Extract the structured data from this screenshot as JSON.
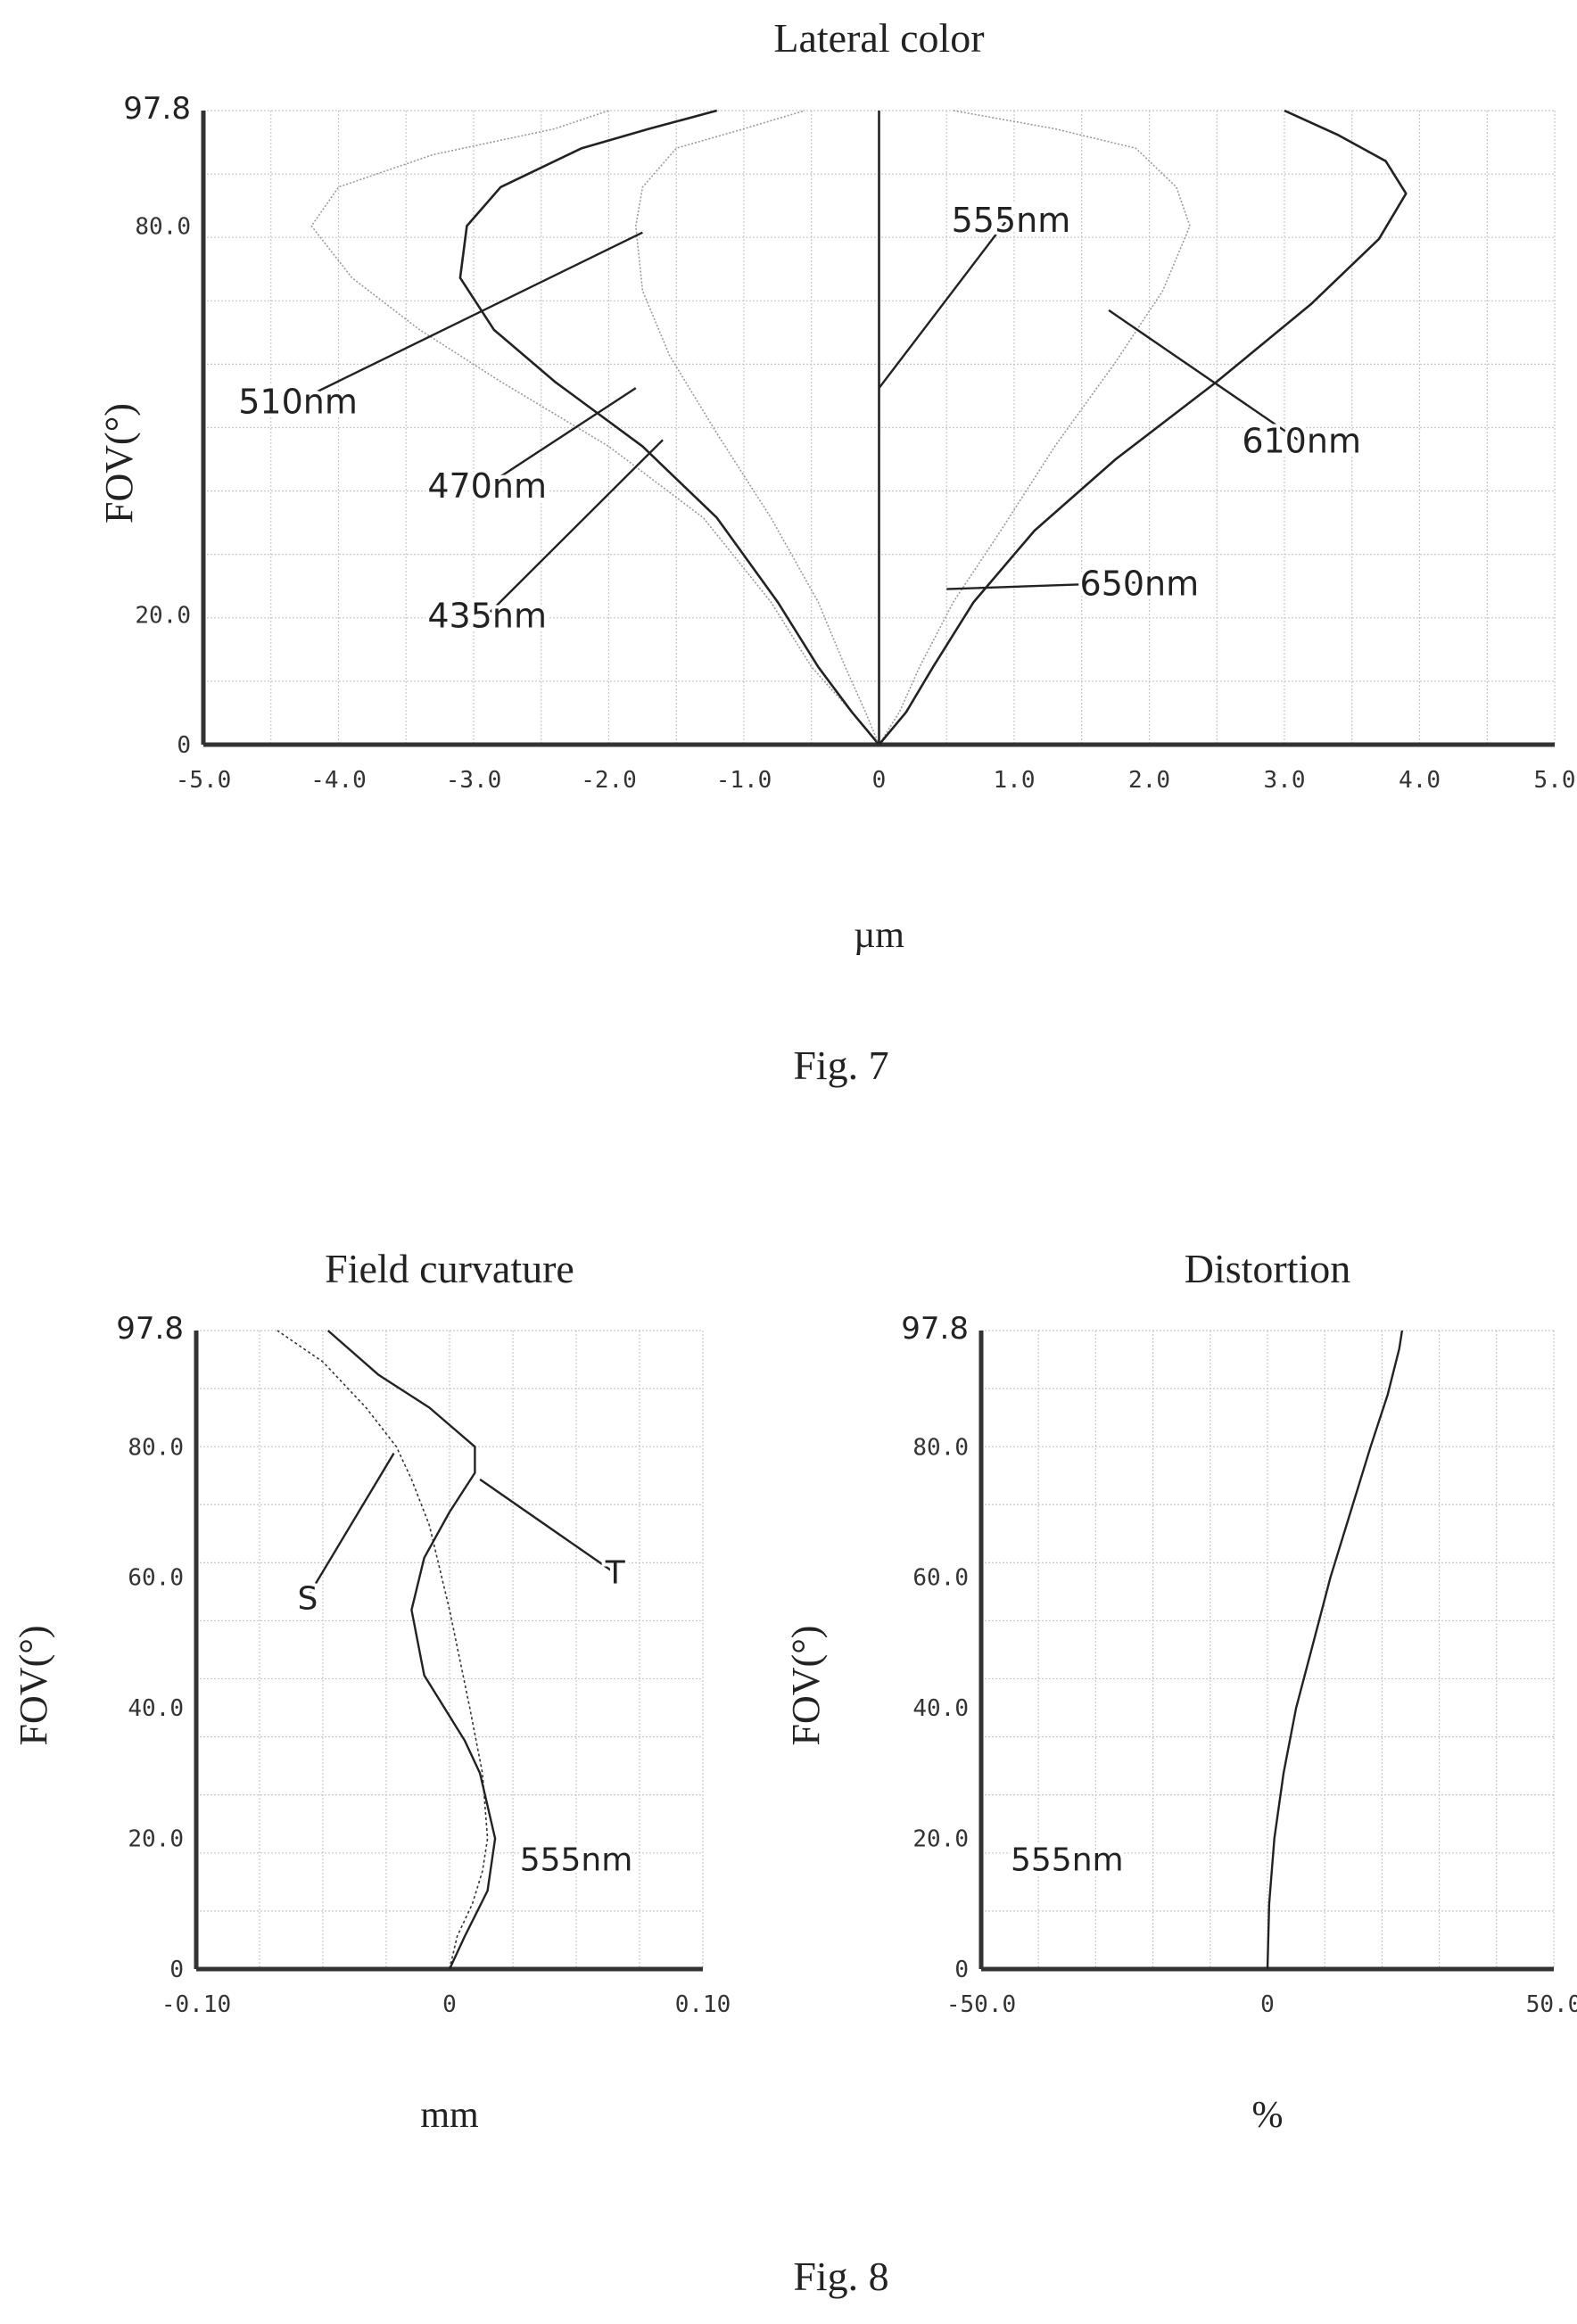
{
  "figures": [
    {
      "id": "fig7",
      "caption": "Fig. 7"
    },
    {
      "id": "fig8",
      "caption": "Fig. 8"
    }
  ],
  "chart_data": [
    {
      "id": "lateral_color",
      "type": "line",
      "title": "Lateral color",
      "xlabel": "µm",
      "ylabel": "FOV(°)",
      "xlim": [
        -5.0,
        5.0
      ],
      "ylim": [
        0,
        97.8
      ],
      "x_ticks": [
        -5.0,
        -4.0,
        -3.0,
        -2.0,
        -1.0,
        0,
        1.0,
        2.0,
        3.0,
        4.0,
        5.0
      ],
      "x_tick_labels": [
        "-5.0",
        "-4.0",
        "-3.0",
        "-2.0",
        "-1.0",
        "0",
        "1.0",
        "2.0",
        "3.0",
        "4.0",
        "5.0"
      ],
      "y_ticks": [
        0,
        20.0,
        80.0,
        97.8
      ],
      "y_tick_labels": [
        "0",
        "20.0",
        "80.0",
        "97.8"
      ],
      "grid": true,
      "series": [
        {
          "name": "435nm",
          "color": "#9a9a9a",
          "dash": "2,2",
          "width": 1.6,
          "points": [
            [
              0,
              0
            ],
            [
              -0.2,
              5
            ],
            [
              -0.5,
              12
            ],
            [
              -0.8,
              22
            ],
            [
              -1.3,
              35
            ],
            [
              -2.0,
              46
            ],
            [
              -2.8,
              56
            ],
            [
              -3.4,
              64
            ],
            [
              -3.9,
              72
            ],
            [
              -4.2,
              80
            ],
            [
              -4.0,
              86
            ],
            [
              -3.3,
              91
            ],
            [
              -2.4,
              95
            ],
            [
              -2.0,
              97.8
            ]
          ]
        },
        {
          "name": "470nm",
          "color": "#222222",
          "dash": "",
          "width": 2.6,
          "points": [
            [
              0,
              0
            ],
            [
              -0.2,
              5
            ],
            [
              -0.45,
              12
            ],
            [
              -0.75,
              22
            ],
            [
              -1.2,
              35
            ],
            [
              -1.75,
              46
            ],
            [
              -2.4,
              56
            ],
            [
              -2.85,
              64
            ],
            [
              -3.1,
              72
            ],
            [
              -3.05,
              80
            ],
            [
              -2.8,
              86
            ],
            [
              -2.2,
              92
            ],
            [
              -1.7,
              95
            ],
            [
              -1.2,
              97.8
            ]
          ]
        },
        {
          "name": "510nm",
          "color": "#9a9a9a",
          "dash": "2,2",
          "width": 1.6,
          "points": [
            [
              0,
              0
            ],
            [
              -0.1,
              5
            ],
            [
              -0.25,
              12
            ],
            [
              -0.45,
              22
            ],
            [
              -0.8,
              35
            ],
            [
              -1.2,
              48
            ],
            [
              -1.55,
              60
            ],
            [
              -1.75,
              70
            ],
            [
              -1.8,
              80
            ],
            [
              -1.75,
              86
            ],
            [
              -1.5,
              92
            ],
            [
              -1.0,
              95
            ],
            [
              -0.55,
              97.8
            ]
          ]
        },
        {
          "name": "555nm",
          "color": "#222222",
          "dash": "",
          "width": 2.6,
          "points": [
            [
              0,
              0
            ],
            [
              0,
              97.8
            ]
          ]
        },
        {
          "name": "610nm",
          "color": "#9a9a9a",
          "dash": "2,2",
          "width": 1.6,
          "points": [
            [
              0,
              0
            ],
            [
              0.15,
              5
            ],
            [
              0.3,
              12
            ],
            [
              0.55,
              22
            ],
            [
              0.9,
              33
            ],
            [
              1.3,
              46
            ],
            [
              1.75,
              59
            ],
            [
              2.1,
              70
            ],
            [
              2.3,
              80
            ],
            [
              2.2,
              86
            ],
            [
              1.9,
              92
            ],
            [
              1.3,
              95
            ],
            [
              0.55,
              97.8
            ]
          ]
        },
        {
          "name": "650nm",
          "color": "#222222",
          "dash": "",
          "width": 2.6,
          "points": [
            [
              0,
              0
            ],
            [
              0.2,
              5
            ],
            [
              0.4,
              12
            ],
            [
              0.7,
              22
            ],
            [
              1.15,
              33
            ],
            [
              1.75,
              44
            ],
            [
              2.5,
              56
            ],
            [
              3.2,
              68
            ],
            [
              3.7,
              78
            ],
            [
              3.9,
              85
            ],
            [
              3.75,
              90
            ],
            [
              3.4,
              94
            ],
            [
              3.0,
              97.8
            ]
          ]
        }
      ],
      "annotations": [
        {
          "text": "510nm",
          "target": [
            -1.75,
            79
          ],
          "label_at": [
            -4.3,
            53
          ]
        },
        {
          "text": "470nm",
          "target": [
            -1.8,
            55
          ],
          "label_at": [
            -2.9,
            40
          ]
        },
        {
          "text": "435nm",
          "target": [
            -1.6,
            47
          ],
          "label_at": [
            -2.9,
            20
          ]
        },
        {
          "text": "555nm",
          "target": [
            0,
            55
          ],
          "label_at": [
            0.95,
            81
          ]
        },
        {
          "text": "610nm",
          "target": [
            1.7,
            67
          ],
          "label_at": [
            3.1,
            47
          ]
        },
        {
          "text": "650nm",
          "target": [
            0.5,
            24
          ],
          "label_at": [
            1.9,
            25
          ]
        }
      ]
    },
    {
      "id": "field_curvature",
      "type": "line",
      "title": "Field curvature",
      "xlabel": "mm",
      "ylabel": "FOV(°)",
      "xlim": [
        -0.1,
        0.1
      ],
      "ylim": [
        0,
        97.8
      ],
      "x_ticks": [
        -0.1,
        0,
        0.1
      ],
      "x_tick_labels": [
        "-0.10",
        "0",
        "0.10"
      ],
      "y_ticks": [
        0,
        20.0,
        40.0,
        60.0,
        80.0,
        97.8
      ],
      "y_tick_labels": [
        "0",
        "20.0",
        "40.0",
        "60.0",
        "80.0",
        "97.8"
      ],
      "grid": true,
      "series": [
        {
          "name": "S",
          "color": "#333333",
          "dash": "3,3",
          "width": 1.6,
          "points": [
            [
              0,
              0
            ],
            [
              0.003,
              5
            ],
            [
              0.009,
              10
            ],
            [
              0.013,
              15
            ],
            [
              0.015,
              20
            ],
            [
              0.013,
              30
            ],
            [
              0.008,
              40
            ],
            [
              0.0,
              55
            ],
            [
              -0.008,
              68
            ],
            [
              -0.015,
              75
            ],
            [
              -0.021,
              80
            ],
            [
              -0.033,
              86
            ],
            [
              -0.05,
              93
            ],
            [
              -0.068,
              97.8
            ]
          ]
        },
        {
          "name": "T",
          "color": "#222222",
          "dash": "",
          "width": 2.4,
          "points": [
            [
              0,
              0
            ],
            [
              0.006,
              5
            ],
            [
              0.015,
              12
            ],
            [
              0.018,
              20
            ],
            [
              0.012,
              30
            ],
            [
              0.006,
              35
            ],
            [
              -0.01,
              45
            ],
            [
              -0.015,
              55
            ],
            [
              -0.01,
              63
            ],
            [
              0.0,
              70
            ],
            [
              0.01,
              76
            ],
            [
              0.01,
              80
            ],
            [
              -0.008,
              86
            ],
            [
              -0.028,
              91
            ],
            [
              -0.048,
              97.8
            ]
          ]
        }
      ],
      "annotations": [
        {
          "text": "S",
          "target": [
            -0.022,
            79
          ],
          "label_at": [
            -0.056,
            57
          ]
        },
        {
          "text": "T",
          "target": [
            0.012,
            75
          ],
          "label_at": [
            0.064,
            61
          ]
        },
        {
          "text": "555nm",
          "target": null,
          "label_at": [
            0.05,
            17
          ]
        }
      ]
    },
    {
      "id": "distortion",
      "type": "line",
      "title": "Distortion",
      "xlabel": "%",
      "ylabel": "FOV(°)",
      "xlim": [
        -50.0,
        50.0
      ],
      "ylim": [
        0,
        97.8
      ],
      "x_ticks": [
        -50.0,
        0,
        50.0
      ],
      "x_tick_labels": [
        "-50.0",
        "0",
        "50.0"
      ],
      "y_ticks": [
        0,
        20.0,
        40.0,
        60.0,
        80.0,
        97.8
      ],
      "y_tick_labels": [
        "0",
        "20.0",
        "40.0",
        "60.0",
        "80.0",
        "97.8"
      ],
      "grid": true,
      "series": [
        {
          "name": "555nm",
          "color": "#222222",
          "dash": "",
          "width": 2.4,
          "points": [
            [
              0,
              0
            ],
            [
              0.3,
              10
            ],
            [
              1.2,
              20
            ],
            [
              2.8,
              30
            ],
            [
              5.0,
              40
            ],
            [
              8.0,
              50
            ],
            [
              11.0,
              60
            ],
            [
              14.5,
              70
            ],
            [
              18.0,
              80
            ],
            [
              21.0,
              88
            ],
            [
              23.0,
              95
            ],
            [
              23.5,
              97.8
            ]
          ]
        }
      ],
      "annotations": [
        {
          "text": "555nm",
          "target": null,
          "label_at": [
            -35,
            17
          ]
        }
      ]
    }
  ]
}
